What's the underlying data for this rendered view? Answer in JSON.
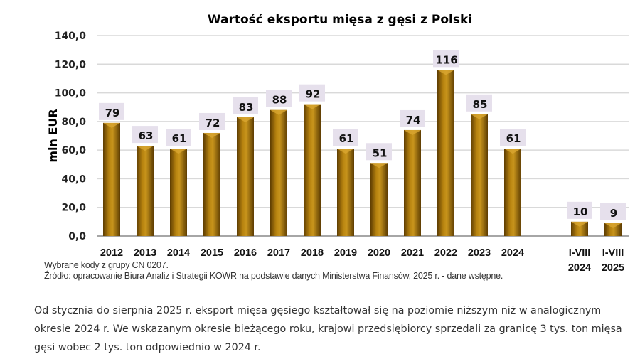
{
  "chart_data": {
    "type": "bar",
    "title": "Wartość eksportu mięsa z gęsi z Polski",
    "ylabel": "mln EUR",
    "xlabel": "",
    "ylim": [
      0,
      140
    ],
    "yticks": [
      "0,0",
      "20,0",
      "40,0",
      "60,0",
      "80,0",
      "100,0",
      "120,0",
      "140,0"
    ],
    "grid": true,
    "categories": [
      "2012",
      "2013",
      "2014",
      "2015",
      "2016",
      "2017",
      "2018",
      "2019",
      "2020",
      "2021",
      "2022",
      "2023",
      "2024",
      "I-VIII 2024",
      "I-VIII 2025"
    ],
    "category_lines": [
      [
        "2012"
      ],
      [
        "2013"
      ],
      [
        "2014"
      ],
      [
        "2015"
      ],
      [
        "2016"
      ],
      [
        "2017"
      ],
      [
        "2018"
      ],
      [
        "2019"
      ],
      [
        "2020"
      ],
      [
        "2021"
      ],
      [
        "2022"
      ],
      [
        "2023"
      ],
      [
        "2024"
      ],
      [
        "I-VIII",
        "2024"
      ],
      [
        "I-VIII",
        "2025"
      ]
    ],
    "values": [
      79,
      63,
      61,
      72,
      83,
      88,
      92,
      61,
      51,
      74,
      116,
      85,
      61,
      10,
      9
    ],
    "bar_color": "#9a6a08",
    "label_bg": "#e6e0ec"
  },
  "notes": {
    "codes": "Wybrane kody z grupy  CN 0207.",
    "source": "Źródło: opracowanie Biura  Analiz i Strategii KOWR na podstawie danych Ministerstwa Finansów, 2025 r. - dane wstępne."
  },
  "paragraph": "Od stycznia do sierpnia 2025 r. eksport mięsa gęsiego kształtował się na poziomie niższym niż w analogicznym okresie 2024 r. We wskazanym okresie bieżącego roku, krajowi przedsiębiorcy sprzedali za granicę 3 tys. ton mięsa gęsi wobec 2 tys. ton odpowiednio w 2024 r."
}
